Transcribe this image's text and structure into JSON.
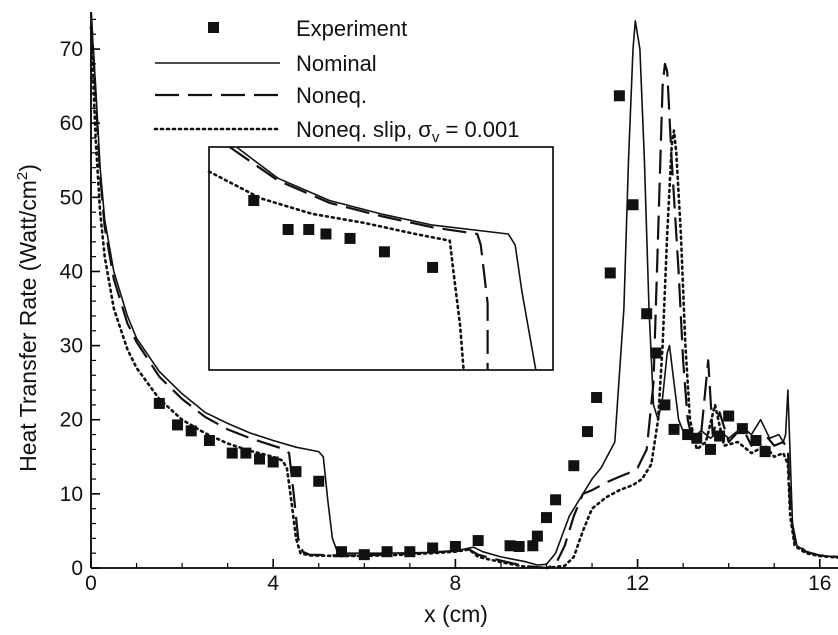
{
  "chart_data": {
    "type": "line",
    "xlabel": "x (cm)",
    "ylabel": "Heat Transfer Rate (Watt/cm²)",
    "ylabel_base": "Heat Transfer Rate (Watt/cm",
    "ylabel_sup": "2",
    "ylabel_end": ")",
    "xlim": [
      0,
      16.4
    ],
    "ylim": [
      0,
      75
    ],
    "xticks": [
      0,
      4,
      8,
      12,
      16
    ],
    "yticks": [
      0,
      10,
      20,
      30,
      40,
      50,
      60,
      70
    ],
    "grid": false,
    "legend_position": "top-center",
    "legend": {
      "experiment": "Experiment",
      "nominal": "Nominal",
      "noneq": "Noneq.",
      "slip_prefix": "Noneq. slip, ",
      "slip_sigma": "σ",
      "slip_sub": "v",
      "slip_suffix": " = 0.001"
    },
    "series": [
      {
        "name": "Experiment",
        "style": "markers",
        "points": [
          [
            1.5,
            22.2
          ],
          [
            1.9,
            19.3
          ],
          [
            2.2,
            18.5
          ],
          [
            2.6,
            17.2
          ],
          [
            3.1,
            15.5
          ],
          [
            3.4,
            15.5
          ],
          [
            3.7,
            14.7
          ],
          [
            4.0,
            14.3
          ],
          [
            4.5,
            13.0
          ],
          [
            5.0,
            11.7
          ],
          [
            5.5,
            2.2
          ],
          [
            6.0,
            1.8
          ],
          [
            6.5,
            2.2
          ],
          [
            7.0,
            2.2
          ],
          [
            7.5,
            2.7
          ],
          [
            8.0,
            2.9
          ],
          [
            8.5,
            3.7
          ],
          [
            9.2,
            3.0
          ],
          [
            9.4,
            2.9
          ],
          [
            9.7,
            3.0
          ],
          [
            9.8,
            4.3
          ],
          [
            10.0,
            6.8
          ],
          [
            10.2,
            9.2
          ],
          [
            10.6,
            13.8
          ],
          [
            10.9,
            18.4
          ],
          [
            11.1,
            23.0
          ],
          [
            11.4,
            39.8
          ],
          [
            11.6,
            63.7
          ],
          [
            11.9,
            49.0
          ],
          [
            12.2,
            34.3
          ],
          [
            12.4,
            29.0
          ],
          [
            12.6,
            22.0
          ],
          [
            12.8,
            18.7
          ],
          [
            13.1,
            18.0
          ],
          [
            13.3,
            17.5
          ],
          [
            13.6,
            16.0
          ],
          [
            13.8,
            17.8
          ],
          [
            14.0,
            20.5
          ],
          [
            14.3,
            18.8
          ],
          [
            14.6,
            17.2
          ],
          [
            14.8,
            15.7
          ]
        ]
      },
      {
        "name": "Nominal",
        "style": "solid",
        "points": [
          [
            0,
            75
          ],
          [
            0.1,
            65
          ],
          [
            0.2,
            54
          ],
          [
            0.3,
            47
          ],
          [
            0.5,
            40
          ],
          [
            0.8,
            34
          ],
          [
            1.0,
            31
          ],
          [
            1.5,
            26.5
          ],
          [
            2.0,
            23.5
          ],
          [
            2.5,
            21
          ],
          [
            3.0,
            19.5
          ],
          [
            3.5,
            18.2
          ],
          [
            4.0,
            17.2
          ],
          [
            4.5,
            16.3
          ],
          [
            5.0,
            15.7
          ],
          [
            5.1,
            15
          ],
          [
            5.2,
            9
          ],
          [
            5.3,
            4
          ],
          [
            5.4,
            2.3
          ],
          [
            5.6,
            2.0
          ],
          [
            6.5,
            2.0
          ],
          [
            7.5,
            2.1
          ],
          [
            8.0,
            2.3
          ],
          [
            8.4,
            2.8
          ],
          [
            8.6,
            2.2
          ],
          [
            9.0,
            1.5
          ],
          [
            9.5,
            0.9
          ],
          [
            9.8,
            0.4
          ],
          [
            10.0,
            0.5
          ],
          [
            10.2,
            2.0
          ],
          [
            10.5,
            7.0
          ],
          [
            11.0,
            12.0
          ],
          [
            11.2,
            13.5
          ],
          [
            11.5,
            17.0
          ],
          [
            11.7,
            35.0
          ],
          [
            11.8,
            55.0
          ],
          [
            11.9,
            70.0
          ],
          [
            11.95,
            73.8
          ],
          [
            12.05,
            70.0
          ],
          [
            12.15,
            55.0
          ],
          [
            12.25,
            35.0
          ],
          [
            12.35,
            22.0
          ],
          [
            12.45,
            20.0
          ],
          [
            12.55,
            23.0
          ],
          [
            12.65,
            29.0
          ],
          [
            12.7,
            30.0
          ],
          [
            12.8,
            25.0
          ],
          [
            12.9,
            20.0
          ],
          [
            13.0,
            18.5
          ],
          [
            13.2,
            17.5
          ],
          [
            13.4,
            18.5
          ],
          [
            13.6,
            17.5
          ],
          [
            13.8,
            18.5
          ],
          [
            14.0,
            17.5
          ],
          [
            14.3,
            19.0
          ],
          [
            14.5,
            18.0
          ],
          [
            14.7,
            20.0
          ],
          [
            14.9,
            17.5
          ],
          [
            15.1,
            18.0
          ],
          [
            15.2,
            17.0
          ],
          [
            15.25,
            18.0
          ],
          [
            15.3,
            24.0
          ],
          [
            15.35,
            15.0
          ],
          [
            15.4,
            6.0
          ],
          [
            15.5,
            3.0
          ],
          [
            15.7,
            2.2
          ],
          [
            16.0,
            1.7
          ],
          [
            16.4,
            1.5
          ]
        ]
      },
      {
        "name": "Noneq.",
        "style": "dashed",
        "points": [
          [
            0,
            75
          ],
          [
            0.1,
            64
          ],
          [
            0.2,
            53
          ],
          [
            0.3,
            46
          ],
          [
            0.5,
            39
          ],
          [
            0.8,
            33
          ],
          [
            1.0,
            30.5
          ],
          [
            1.5,
            25.8
          ],
          [
            2.0,
            22.8
          ],
          [
            2.5,
            20.4
          ],
          [
            3.0,
            18.7
          ],
          [
            3.5,
            17.5
          ],
          [
            4.0,
            16.5
          ],
          [
            4.2,
            16.1
          ],
          [
            4.35,
            15.5
          ],
          [
            4.45,
            10
          ],
          [
            4.55,
            4
          ],
          [
            4.65,
            2.2
          ],
          [
            4.8,
            1.8
          ],
          [
            5.5,
            1.7
          ],
          [
            6.5,
            1.8
          ],
          [
            7.5,
            2.1
          ],
          [
            8.0,
            2.3
          ],
          [
            8.3,
            2.5
          ],
          [
            8.5,
            1.8
          ],
          [
            9.0,
            1.0
          ],
          [
            9.5,
            0.3
          ],
          [
            10.0,
            0.0
          ],
          [
            10.2,
            0.5
          ],
          [
            10.4,
            3.0
          ],
          [
            10.6,
            7.0
          ],
          [
            10.8,
            10.0
          ],
          [
            11.0,
            10.5
          ],
          [
            11.3,
            11.5
          ],
          [
            11.6,
            12.3
          ],
          [
            11.8,
            12.8
          ],
          [
            12.0,
            13.5
          ],
          [
            12.2,
            16.0
          ],
          [
            12.35,
            25.0
          ],
          [
            12.45,
            45.0
          ],
          [
            12.55,
            65.0
          ],
          [
            12.6,
            68.0
          ],
          [
            12.65,
            67.0
          ],
          [
            12.75,
            55.0
          ],
          [
            12.9,
            40.0
          ],
          [
            13.0,
            28.0
          ],
          [
            13.1,
            20.0
          ],
          [
            13.2,
            17.5
          ],
          [
            13.4,
            18.5
          ],
          [
            13.55,
            28.0
          ],
          [
            13.65,
            18.0
          ],
          [
            13.8,
            21.0
          ],
          [
            14.0,
            17.0
          ],
          [
            14.3,
            19.0
          ],
          [
            14.5,
            16.5
          ],
          [
            14.8,
            18.0
          ],
          [
            15.0,
            16.5
          ],
          [
            15.2,
            17.0
          ],
          [
            15.3,
            16.0
          ],
          [
            15.35,
            8.0
          ],
          [
            15.45,
            3.5
          ],
          [
            15.7,
            2.2
          ],
          [
            16.0,
            1.7
          ],
          [
            16.4,
            1.5
          ]
        ]
      },
      {
        "name": "Noneq. slip, σv = 0.001",
        "style": "dotted",
        "points": [
          [
            0,
            73
          ],
          [
            0.1,
            58
          ],
          [
            0.2,
            48
          ],
          [
            0.3,
            42
          ],
          [
            0.5,
            35
          ],
          [
            0.8,
            29.5
          ],
          [
            1.0,
            27
          ],
          [
            1.5,
            22.8
          ],
          [
            2.0,
            20.0
          ],
          [
            2.5,
            18.2
          ],
          [
            3.0,
            16.8
          ],
          [
            3.5,
            15.8
          ],
          [
            4.0,
            15.0
          ],
          [
            4.2,
            14.5
          ],
          [
            4.3,
            13.5
          ],
          [
            4.4,
            9.0
          ],
          [
            4.5,
            4.0
          ],
          [
            4.6,
            2.0
          ],
          [
            4.8,
            1.7
          ],
          [
            5.5,
            1.6
          ],
          [
            6.5,
            1.7
          ],
          [
            7.5,
            2.0
          ],
          [
            8.0,
            2.2
          ],
          [
            8.3,
            2.5
          ],
          [
            8.5,
            1.5
          ],
          [
            9.0,
            0.8
          ],
          [
            9.5,
            0.2
          ],
          [
            10.0,
            0.0
          ],
          [
            10.4,
            0.3
          ],
          [
            10.6,
            1.5
          ],
          [
            10.8,
            5.0
          ],
          [
            11.0,
            8.0
          ],
          [
            11.3,
            9.5
          ],
          [
            11.6,
            10.5
          ],
          [
            11.9,
            11.2
          ],
          [
            12.1,
            12.0
          ],
          [
            12.3,
            14.0
          ],
          [
            12.45,
            20.0
          ],
          [
            12.55,
            30.0
          ],
          [
            12.65,
            45.0
          ],
          [
            12.75,
            57.0
          ],
          [
            12.8,
            59.0
          ],
          [
            12.85,
            56.0
          ],
          [
            12.95,
            45.0
          ],
          [
            13.05,
            30.0
          ],
          [
            13.15,
            20.0
          ],
          [
            13.3,
            16.0
          ],
          [
            13.5,
            17.0
          ],
          [
            13.7,
            22.0
          ],
          [
            13.9,
            16.5
          ],
          [
            14.2,
            17.0
          ],
          [
            14.5,
            15.5
          ],
          [
            14.8,
            16.5
          ],
          [
            15.0,
            15.0
          ],
          [
            15.2,
            15.5
          ],
          [
            15.3,
            14.0
          ],
          [
            15.35,
            7.0
          ],
          [
            15.45,
            3.0
          ],
          [
            15.7,
            2.0
          ],
          [
            16.0,
            1.6
          ],
          [
            16.4,
            1.4
          ]
        ]
      }
    ],
    "inset": {
      "markers": [
        [
          0.13,
          0.24
        ],
        [
          0.23,
          0.37
        ],
        [
          0.29,
          0.37
        ],
        [
          0.34,
          0.39
        ],
        [
          0.41,
          0.41
        ],
        [
          0.51,
          0.47
        ],
        [
          0.65,
          0.54
        ]
      ],
      "nominal": [
        [
          0.08,
          0.0
        ],
        [
          0.2,
          0.14
        ],
        [
          0.35,
          0.24
        ],
        [
          0.5,
          0.3
        ],
        [
          0.65,
          0.35
        ],
        [
          0.87,
          0.39
        ],
        [
          0.89,
          0.44
        ],
        [
          0.91,
          0.65
        ],
        [
          0.95,
          1.0
        ]
      ],
      "noneq": [
        [
          0.06,
          0.0
        ],
        [
          0.2,
          0.15
        ],
        [
          0.35,
          0.25
        ],
        [
          0.5,
          0.31
        ],
        [
          0.65,
          0.36
        ],
        [
          0.78,
          0.39
        ],
        [
          0.79,
          0.44
        ],
        [
          0.81,
          0.7
        ],
        [
          0.81,
          1.0
        ]
      ],
      "slip": [
        [
          0.0,
          0.11
        ],
        [
          0.15,
          0.23
        ],
        [
          0.3,
          0.3
        ],
        [
          0.45,
          0.34
        ],
        [
          0.6,
          0.39
        ],
        [
          0.7,
          0.42
        ],
        [
          0.71,
          0.55
        ],
        [
          0.73,
          0.8
        ],
        [
          0.74,
          1.0
        ]
      ]
    }
  }
}
